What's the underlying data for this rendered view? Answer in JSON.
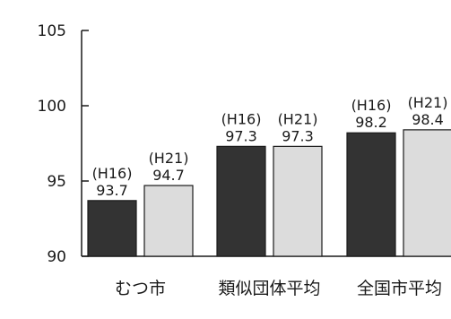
{
  "chart_data": {
    "type": "bar",
    "categories": [
      "むつ市",
      "類似団体平均",
      "全国市平均"
    ],
    "series": [
      {
        "name": "(H16)",
        "values": [
          93.7,
          97.3,
          98.2
        ]
      },
      {
        "name": "(H21)",
        "values": [
          94.7,
          97.3,
          98.4
        ]
      }
    ],
    "value_labels": [
      [
        "93.7",
        "97.3",
        "98.2"
      ],
      [
        "94.7",
        "97.3",
        "98.4"
      ]
    ],
    "title": "",
    "xlabel": "",
    "ylabel": "",
    "ylim": [
      90,
      105
    ],
    "yticks": [
      "90",
      "95",
      "100",
      "105"
    ],
    "grid": false,
    "legend": "none",
    "colors": {
      "series_0": "#333333",
      "series_1": "#dcdcdc",
      "axis": "#1a1a1a",
      "bar_stroke": "#1a1a1a"
    }
  }
}
